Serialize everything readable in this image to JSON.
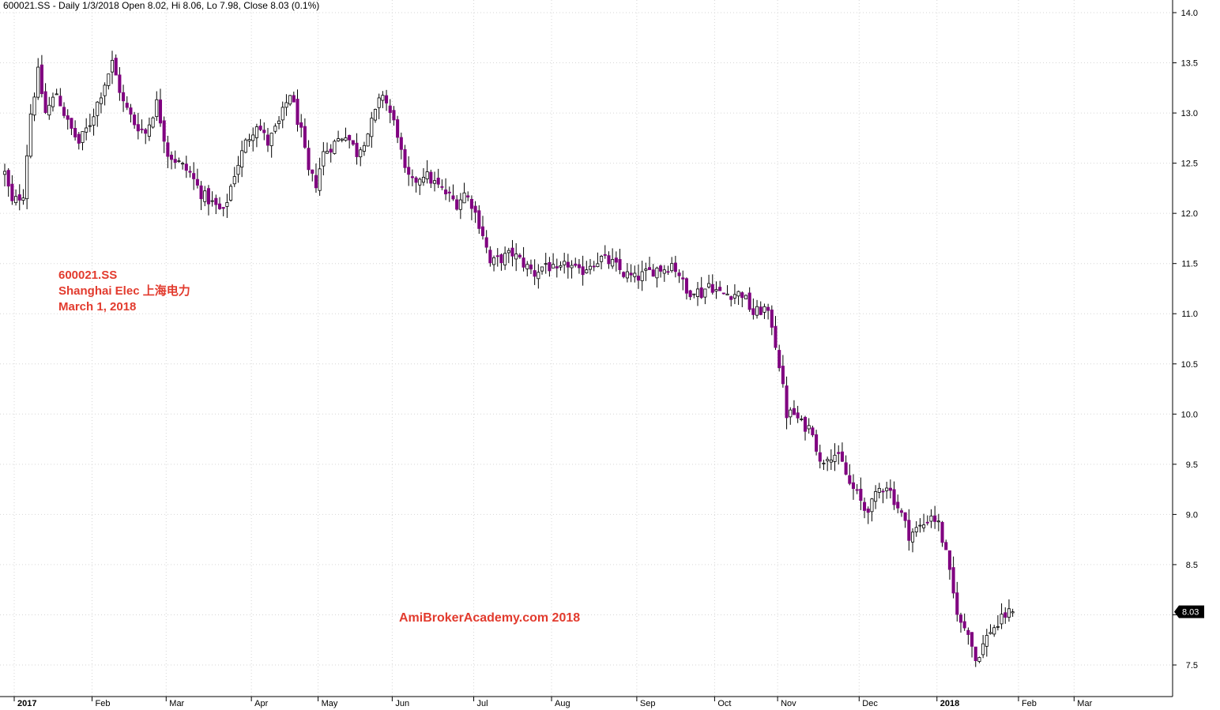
{
  "header": {
    "text": "600021.SS - Daily 1/3/2018 Open 8.02, Hi 8.06, Lo 7.98, Close 8.03 (0.1%)"
  },
  "annotation": {
    "line1": "600021.SS",
    "line2": "Shanghai Elec 上海电力",
    "line3": "March 1, 2018",
    "color": "#e23b2e"
  },
  "watermark": {
    "text": "AmiBrokerAcademy.com  2018",
    "color": "#e23b2e"
  },
  "last_price": {
    "label": "8.03",
    "value": 8.03,
    "box_color": "#000000"
  },
  "colors": {
    "down_candle": "#800080",
    "up_candle": "#ffffff",
    "wick": "#000000",
    "grid": "#d6d6d6"
  },
  "chart_data": {
    "type": "candlestick",
    "title": "600021.SS - Daily 1/3/2018 Open 8.02, Hi 8.06, Lo 7.98, Close 8.03 (0.1%)",
    "xlabel": "",
    "ylabel": "",
    "ylim": [
      7.2,
      14.05
    ],
    "grid": true,
    "y_ticks": [
      "7.5",
      "8.0",
      "8.5",
      "9.0",
      "9.5",
      "10.0",
      "10.5",
      "11.0",
      "11.5",
      "12.0",
      "12.5",
      "13.0",
      "13.5",
      "14.0"
    ],
    "x_ticks": [
      {
        "label": "2017",
        "bar": 0,
        "year": true
      },
      {
        "label": "Feb",
        "bar": 21,
        "year": false
      },
      {
        "label": "Mar",
        "bar": 41,
        "year": false
      },
      {
        "label": "Apr",
        "bar": 64,
        "year": false
      },
      {
        "label": "May",
        "bar": 82,
        "year": false
      },
      {
        "label": "Jun",
        "bar": 102,
        "year": false
      },
      {
        "label": "Jul",
        "bar": 124,
        "year": false
      },
      {
        "label": "Aug",
        "bar": 145,
        "year": false
      },
      {
        "label": "Sep",
        "bar": 168,
        "year": false
      },
      {
        "label": "Oct",
        "bar": 189,
        "year": false
      },
      {
        "label": "Nov",
        "bar": 206,
        "year": false
      },
      {
        "label": "Dec",
        "bar": 228,
        "year": false
      },
      {
        "label": "2018",
        "bar": 249,
        "year": true
      },
      {
        "label": "Feb",
        "bar": 271,
        "year": false
      },
      {
        "label": "Mar",
        "bar": 286,
        "year": false
      }
    ],
    "bar_count": 288,
    "close_keypoints": [
      [
        0,
        12.4
      ],
      [
        2,
        12.1
      ],
      [
        5,
        12.2
      ],
      [
        7,
        13.0
      ],
      [
        9,
        13.4
      ],
      [
        11,
        13.0
      ],
      [
        14,
        13.2
      ],
      [
        17,
        12.9
      ],
      [
        20,
        12.7
      ],
      [
        23,
        12.9
      ],
      [
        26,
        13.2
      ],
      [
        29,
        13.5
      ],
      [
        32,
        13.1
      ],
      [
        35,
        12.9
      ],
      [
        38,
        12.8
      ],
      [
        41,
        13.1
      ],
      [
        44,
        12.6
      ],
      [
        47,
        12.5
      ],
      [
        50,
        12.4
      ],
      [
        53,
        12.2
      ],
      [
        56,
        12.1
      ],
      [
        59,
        12.0
      ],
      [
        62,
        12.4
      ],
      [
        65,
        12.7
      ],
      [
        68,
        12.9
      ],
      [
        71,
        12.7
      ],
      [
        74,
        12.9
      ],
      [
        77,
        13.2
      ],
      [
        80,
        12.8
      ],
      [
        82,
        12.4
      ],
      [
        84,
        12.3
      ],
      [
        86,
        12.6
      ],
      [
        89,
        12.7
      ],
      [
        92,
        12.8
      ],
      [
        95,
        12.6
      ],
      [
        98,
        12.8
      ],
      [
        100,
        13.0
      ],
      [
        102,
        13.2
      ],
      [
        104,
        13.0
      ],
      [
        106,
        12.8
      ],
      [
        108,
        12.4
      ],
      [
        110,
        12.3
      ],
      [
        113,
        12.4
      ],
      [
        116,
        12.3
      ],
      [
        119,
        12.2
      ],
      [
        122,
        12.1
      ],
      [
        124,
        12.2
      ],
      [
        126,
        12.1
      ],
      [
        129,
        11.8
      ],
      [
        131,
        11.5
      ],
      [
        134,
        11.55
      ],
      [
        137,
        11.6
      ],
      [
        140,
        11.5
      ],
      [
        143,
        11.4
      ],
      [
        146,
        11.5
      ],
      [
        149,
        11.4
      ],
      [
        152,
        11.5
      ],
      [
        155,
        11.4
      ],
      [
        158,
        11.5
      ],
      [
        161,
        11.55
      ],
      [
        164,
        11.5
      ],
      [
        167,
        11.4
      ],
      [
        170,
        11.35
      ],
      [
        173,
        11.4
      ],
      [
        176,
        11.45
      ],
      [
        178,
        11.45
      ],
      [
        180,
        11.5
      ],
      [
        182,
        11.4
      ],
      [
        184,
        11.2
      ],
      [
        186,
        11.25
      ],
      [
        188,
        11.2
      ],
      [
        190,
        11.3
      ],
      [
        193,
        11.2
      ],
      [
        196,
        11.2
      ],
      [
        199,
        11.2
      ],
      [
        202,
        11.0
      ],
      [
        205,
        11.05
      ],
      [
        207,
        10.9
      ],
      [
        209,
        10.5
      ],
      [
        211,
        10.0
      ],
      [
        213,
        10.0
      ],
      [
        215,
        9.9
      ],
      [
        218,
        9.85
      ],
      [
        220,
        9.5
      ],
      [
        222,
        9.6
      ],
      [
        224,
        9.6
      ],
      [
        226,
        9.5
      ],
      [
        228,
        9.3
      ],
      [
        230,
        9.2
      ],
      [
        232,
        9.05
      ],
      [
        234,
        9.1
      ],
      [
        236,
        9.25
      ],
      [
        238,
        9.3
      ],
      [
        240,
        9.15
      ],
      [
        242,
        9.0
      ],
      [
        244,
        8.8
      ],
      [
        246,
        8.85
      ],
      [
        248,
        8.9
      ],
      [
        250,
        9.0
      ],
      [
        252,
        8.9
      ],
      [
        254,
        8.6
      ],
      [
        256,
        8.2
      ],
      [
        258,
        7.9
      ],
      [
        260,
        7.85
      ],
      [
        262,
        7.55
      ],
      [
        264,
        7.7
      ],
      [
        266,
        7.85
      ],
      [
        268,
        7.9
      ],
      [
        270,
        8.0
      ],
      [
        272,
        8.03
      ]
    ],
    "last_close": 8.03,
    "last_bar": {
      "open": 8.02,
      "high": 8.06,
      "low": 7.98,
      "close": 8.03
    }
  }
}
